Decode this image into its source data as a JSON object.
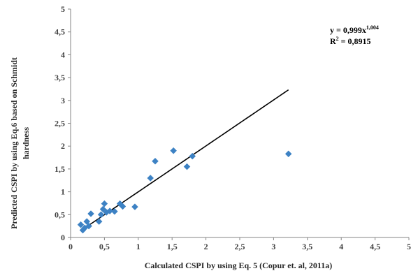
{
  "chart_data": {
    "type": "scatter",
    "xlabel": "Calculated CSPI by using Eq. 5 (Copur et. al, 2011a)",
    "ylabel_line1": "Predicted CSPI by using Eq.6 based on Schmidt",
    "ylabel_line2": "hardness",
    "xlim": [
      0,
      5
    ],
    "ylim": [
      0,
      5
    ],
    "x_ticks": [
      "0",
      "0,5",
      "1",
      "1,5",
      "2",
      "2,5",
      "3",
      "3,5",
      "4",
      "4,5",
      "5"
    ],
    "y_ticks": [
      "0",
      "0,5",
      "1",
      "1,5",
      "2",
      "2,5",
      "3",
      "3,5",
      "4",
      "4,5",
      "5"
    ],
    "grid": false,
    "points": [
      {
        "x": 0.15,
        "y": 0.28
      },
      {
        "x": 0.18,
        "y": 0.16
      },
      {
        "x": 0.21,
        "y": 0.21
      },
      {
        "x": 0.24,
        "y": 0.35
      },
      {
        "x": 0.27,
        "y": 0.25
      },
      {
        "x": 0.3,
        "y": 0.52
      },
      {
        "x": 0.42,
        "y": 0.35
      },
      {
        "x": 0.45,
        "y": 0.5
      },
      {
        "x": 0.48,
        "y": 0.62
      },
      {
        "x": 0.5,
        "y": 0.74
      },
      {
        "x": 0.53,
        "y": 0.55
      },
      {
        "x": 0.58,
        "y": 0.58
      },
      {
        "x": 0.65,
        "y": 0.57
      },
      {
        "x": 0.73,
        "y": 0.74
      },
      {
        "x": 0.77,
        "y": 0.68
      },
      {
        "x": 0.95,
        "y": 0.67
      },
      {
        "x": 1.18,
        "y": 1.3
      },
      {
        "x": 1.25,
        "y": 1.67
      },
      {
        "x": 1.52,
        "y": 1.9
      },
      {
        "x": 1.72,
        "y": 1.55
      },
      {
        "x": 1.8,
        "y": 1.78
      },
      {
        "x": 3.22,
        "y": 1.83
      }
    ],
    "trendline": {
      "type": "power",
      "coefficient": 0.999,
      "exponent": 1.004,
      "x_start": 0.15,
      "x_end": 3.22
    },
    "equation_base": "y = 0,999x",
    "equation_exp": "1,004",
    "r2_label": "R",
    "r2_sup": "2",
    "r2_value": " = 0,8915",
    "marker_color": "#3d82c4",
    "line_color": "#000000"
  }
}
